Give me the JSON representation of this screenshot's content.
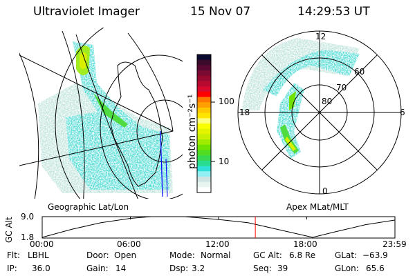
{
  "header": {
    "instrument": "Ultraviolet Imager",
    "date": "15 Nov 07",
    "time": "14:29:53 UT"
  },
  "colorbar": {
    "label": "photon cm⁻²s⁻¹",
    "ticks": [
      "100",
      "10"
    ],
    "colors": [
      "#0a0a30",
      "#3a0a2a",
      "#5a0a32",
      "#7a0a32",
      "#980a30",
      "#b80a30",
      "#d80a30",
      "#ff0000",
      "#ff7800",
      "#ffa000",
      "#ffc800",
      "#ffe400",
      "#ffff80",
      "#f8ff00",
      "#e4f400",
      "#c8f000",
      "#a0ec00",
      "#70e400",
      "#50dc20",
      "#38d850",
      "#28dc90",
      "#30e0d8",
      "#90f0f4",
      "#d0e4e4",
      "#e8f4f0",
      "#ffffff"
    ]
  },
  "polar": {
    "mlt_labels": [
      "12",
      "18",
      "6",
      "0"
    ],
    "mlat_labels": [
      "80",
      "70",
      "60"
    ]
  },
  "frame_labels": {
    "left": "Geographic Lat/Lon",
    "right": "Apex MLat/MLT"
  },
  "chart_data": {
    "type": "line",
    "ylabel": "GC Alt",
    "yticks": [
      "9.0",
      "1.8"
    ],
    "ylim": [
      1.8,
      9.0
    ],
    "xlim": [
      0,
      24
    ],
    "xticks": [
      "00:00",
      "06:00",
      "12:00",
      "18:00",
      "23:59"
    ],
    "x": [
      0,
      2,
      4,
      6,
      7.4,
      9.7,
      12,
      14,
      16,
      18.4,
      20,
      22,
      23.98
    ],
    "y": [
      1.8,
      4.6,
      6.9,
      8.4,
      9.0,
      9.0,
      8.0,
      6.9,
      4.6,
      1.8,
      3.8,
      6.2,
      7.8
    ],
    "current_time_marker": 14.5,
    "marker_color": "#ff0000"
  },
  "info": [
    {
      "label": "Flt:",
      "value": "LBHL"
    },
    {
      "label": "Door:",
      "value": "Open"
    },
    {
      "label": "Mode:",
      "value": "Normal"
    },
    {
      "label": "GC Alt:",
      "value": "6.8 Re"
    },
    {
      "label": "GLat:",
      "value": "−63.9"
    },
    {
      "label": "IP:",
      "value": "36.0"
    },
    {
      "label": "Gain:",
      "value": "14"
    },
    {
      "label": "Dsp:",
      "value": "3.2"
    },
    {
      "label": "Seq:",
      "value": "39"
    },
    {
      "label": "GLon:",
      "value": "65.6"
    }
  ]
}
